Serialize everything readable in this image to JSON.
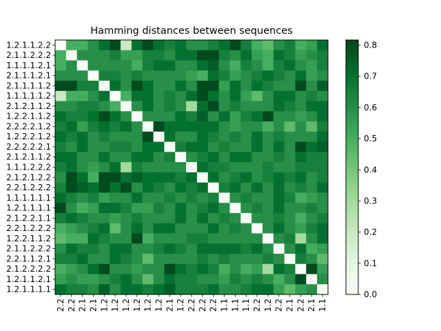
{
  "chart_data": {
    "type": "heatmap",
    "title": "Hamming distances between sequences",
    "row_labels": [
      "1.2.1.1.2.2",
      "2.1.1.2.2.2",
      "1.1.1.1.2.1",
      "2.1.1.1.2.1",
      "2.1.1.1.1.2",
      "1.1.1.1.1.2",
      "2.1.2.1.1.2",
      "1.2.2.1.1.2",
      "2.2.2.2.1.2",
      "1.2.2.2.1.2",
      "2.2.2.2.2.1",
      "2.1.2.1.1.2",
      "1.1.1.2.2.2",
      "2.1.2.1.2.2",
      "2.2.1.2.2.2",
      "1.1.1.1.1.1",
      "1.2.1.1.1.1",
      "2.1.2.2.1.1",
      "2.2.1.2.2.2",
      "1.2.2.1.1.2",
      "2.1.1.2.2.2",
      "2.2.1.1.2.1",
      "2.1.2.2.2.2",
      "1.2.1.1.2.1",
      "1.2.1.1.1.1"
    ],
    "col_labels": [
      "2.2",
      "2.2",
      "2.1",
      "2.1",
      "1.2",
      "1.2",
      "1.2",
      "1.2",
      "1.2",
      "1.2",
      "2.1",
      "1.2",
      "2.2",
      "2.2",
      "2.2",
      "1.1",
      "1.1",
      "1.1",
      "2.2",
      "1.2",
      "2.2",
      "2.1",
      "2.2",
      "2.1",
      "1.1"
    ],
    "colorbar": {
      "min": 0.0,
      "max": 0.8167,
      "ticks": [
        0.0,
        0.1,
        0.2,
        0.3,
        0.4,
        0.5,
        0.6,
        0.7,
        0.8
      ],
      "colormap": "Greens"
    },
    "matrix": [
      [
        0.0,
        0.5,
        0.5,
        0.6,
        0.7,
        0.8,
        0.2,
        0.7,
        0.8,
        0.7,
        0.65,
        0.7,
        0.6,
        0.6,
        0.65,
        0.7,
        0.8,
        0.65,
        0.5,
        0.45,
        0.6,
        0.65,
        0.5,
        0.55,
        0.7
      ],
      [
        0.5,
        0.0,
        0.6,
        0.6,
        0.6,
        0.65,
        0.55,
        0.55,
        0.65,
        0.65,
        0.6,
        0.7,
        0.7,
        0.8,
        0.8,
        0.65,
        0.6,
        0.7,
        0.55,
        0.5,
        0.7,
        0.65,
        0.55,
        0.6,
        0.65
      ],
      [
        0.5,
        0.6,
        0.0,
        0.6,
        0.6,
        0.6,
        0.6,
        0.5,
        0.65,
        0.7,
        0.7,
        0.6,
        0.6,
        0.7,
        0.75,
        0.6,
        0.5,
        0.65,
        0.6,
        0.5,
        0.65,
        0.7,
        0.6,
        0.55,
        0.65
      ],
      [
        0.6,
        0.6,
        0.6,
        0.0,
        0.65,
        0.65,
        0.6,
        0.65,
        0.6,
        0.6,
        0.6,
        0.6,
        0.55,
        0.5,
        0.7,
        0.65,
        0.55,
        0.6,
        0.65,
        0.7,
        0.65,
        0.6,
        0.7,
        0.55,
        0.6
      ],
      [
        0.8,
        0.8,
        0.65,
        0.65,
        0.0,
        0.7,
        0.6,
        0.8,
        0.7,
        0.6,
        0.6,
        0.7,
        0.6,
        0.8,
        0.8,
        0.55,
        0.7,
        0.6,
        0.7,
        0.65,
        0.6,
        0.6,
        0.8,
        0.6,
        0.75
      ],
      [
        0.2,
        0.5,
        0.5,
        0.6,
        0.7,
        0.0,
        0.5,
        0.7,
        0.7,
        0.6,
        0.65,
        0.6,
        0.7,
        0.8,
        0.7,
        0.6,
        0.7,
        0.55,
        0.45,
        0.6,
        0.7,
        0.7,
        0.6,
        0.65,
        0.6
      ],
      [
        0.6,
        0.6,
        0.65,
        0.65,
        0.6,
        0.5,
        0.0,
        0.6,
        0.7,
        0.6,
        0.65,
        0.6,
        0.3,
        0.7,
        0.8,
        0.6,
        0.65,
        0.6,
        0.6,
        0.6,
        0.7,
        0.65,
        0.6,
        0.7,
        0.7
      ],
      [
        0.7,
        0.65,
        0.65,
        0.7,
        0.8,
        0.7,
        0.6,
        0.0,
        0.6,
        0.6,
        0.6,
        0.7,
        0.65,
        0.75,
        0.6,
        0.7,
        0.55,
        0.65,
        0.7,
        0.8,
        0.6,
        0.6,
        0.55,
        0.6,
        0.7
      ],
      [
        0.65,
        0.7,
        0.55,
        0.65,
        0.7,
        0.65,
        0.7,
        0.6,
        0.0,
        0.8,
        0.7,
        0.7,
        0.7,
        0.7,
        0.7,
        0.6,
        0.55,
        0.6,
        0.6,
        0.5,
        0.6,
        0.45,
        0.6,
        0.45,
        0.65
      ],
      [
        0.7,
        0.65,
        0.7,
        0.6,
        0.65,
        0.6,
        0.6,
        0.6,
        0.8,
        0.0,
        0.7,
        0.6,
        0.6,
        0.7,
        0.65,
        0.6,
        0.65,
        0.6,
        0.7,
        0.6,
        0.65,
        0.6,
        0.6,
        0.6,
        0.7
      ],
      [
        0.65,
        0.6,
        0.7,
        0.6,
        0.6,
        0.65,
        0.65,
        0.6,
        0.7,
        0.7,
        0.0,
        0.65,
        0.7,
        0.7,
        0.6,
        0.65,
        0.6,
        0.6,
        0.7,
        0.6,
        0.7,
        0.6,
        0.8,
        0.7,
        0.75
      ],
      [
        0.7,
        0.7,
        0.6,
        0.6,
        0.7,
        0.6,
        0.6,
        0.7,
        0.7,
        0.6,
        0.65,
        0.0,
        0.6,
        0.65,
        0.7,
        0.6,
        0.7,
        0.7,
        0.6,
        0.6,
        0.65,
        0.6,
        0.7,
        0.65,
        0.65
      ],
      [
        0.65,
        0.7,
        0.6,
        0.55,
        0.6,
        0.7,
        0.3,
        0.65,
        0.6,
        0.6,
        0.6,
        0.6,
        0.0,
        0.7,
        0.65,
        0.65,
        0.6,
        0.6,
        0.6,
        0.65,
        0.6,
        0.6,
        0.65,
        0.65,
        0.65
      ],
      [
        0.6,
        0.8,
        0.7,
        0.5,
        0.8,
        0.8,
        0.7,
        0.75,
        0.7,
        0.7,
        0.7,
        0.65,
        0.7,
        0.0,
        0.7,
        0.6,
        0.65,
        0.7,
        0.6,
        0.65,
        0.7,
        0.65,
        0.7,
        0.6,
        0.65
      ],
      [
        0.65,
        0.8,
        0.75,
        0.7,
        0.8,
        0.7,
        0.8,
        0.6,
        0.7,
        0.65,
        0.6,
        0.7,
        0.65,
        0.7,
        0.0,
        0.65,
        0.7,
        0.6,
        0.7,
        0.6,
        0.7,
        0.6,
        0.65,
        0.6,
        0.7
      ],
      [
        0.7,
        0.65,
        0.6,
        0.65,
        0.55,
        0.6,
        0.6,
        0.7,
        0.6,
        0.6,
        0.65,
        0.6,
        0.65,
        0.6,
        0.65,
        0.0,
        0.6,
        0.65,
        0.6,
        0.6,
        0.7,
        0.65,
        0.5,
        0.55,
        0.6
      ],
      [
        0.8,
        0.6,
        0.5,
        0.55,
        0.7,
        0.7,
        0.65,
        0.55,
        0.55,
        0.65,
        0.6,
        0.7,
        0.6,
        0.65,
        0.7,
        0.6,
        0.0,
        0.6,
        0.65,
        0.6,
        0.7,
        0.6,
        0.6,
        0.65,
        0.6
      ],
      [
        0.65,
        0.7,
        0.65,
        0.6,
        0.6,
        0.55,
        0.6,
        0.65,
        0.6,
        0.6,
        0.6,
        0.7,
        0.6,
        0.7,
        0.6,
        0.65,
        0.6,
        0.0,
        0.6,
        0.6,
        0.65,
        0.6,
        0.5,
        0.6,
        0.65
      ],
      [
        0.5,
        0.55,
        0.6,
        0.65,
        0.7,
        0.45,
        0.6,
        0.7,
        0.6,
        0.7,
        0.7,
        0.6,
        0.6,
        0.6,
        0.7,
        0.6,
        0.65,
        0.6,
        0.0,
        0.6,
        0.7,
        0.6,
        0.55,
        0.65,
        0.7
      ],
      [
        0.45,
        0.5,
        0.5,
        0.7,
        0.65,
        0.6,
        0.6,
        0.8,
        0.5,
        0.6,
        0.6,
        0.6,
        0.65,
        0.65,
        0.6,
        0.6,
        0.6,
        0.6,
        0.6,
        0.0,
        0.6,
        0.65,
        0.3,
        0.6,
        0.7
      ],
      [
        0.6,
        0.7,
        0.65,
        0.65,
        0.6,
        0.7,
        0.7,
        0.6,
        0.6,
        0.65,
        0.7,
        0.65,
        0.6,
        0.7,
        0.7,
        0.7,
        0.7,
        0.65,
        0.7,
        0.6,
        0.0,
        0.6,
        0.7,
        0.5,
        0.55
      ],
      [
        0.65,
        0.65,
        0.7,
        0.6,
        0.6,
        0.7,
        0.65,
        0.6,
        0.45,
        0.6,
        0.6,
        0.6,
        0.6,
        0.65,
        0.6,
        0.65,
        0.6,
        0.6,
        0.6,
        0.65,
        0.6,
        0.0,
        0.65,
        0.6,
        0.45
      ],
      [
        0.5,
        0.55,
        0.6,
        0.7,
        0.8,
        0.6,
        0.6,
        0.55,
        0.6,
        0.6,
        0.8,
        0.7,
        0.65,
        0.7,
        0.65,
        0.5,
        0.6,
        0.5,
        0.55,
        0.3,
        0.7,
        0.65,
        0.0,
        0.8,
        0.55
      ],
      [
        0.55,
        0.6,
        0.55,
        0.55,
        0.6,
        0.65,
        0.7,
        0.6,
        0.45,
        0.6,
        0.7,
        0.65,
        0.65,
        0.6,
        0.6,
        0.55,
        0.65,
        0.6,
        0.65,
        0.6,
        0.5,
        0.6,
        0.8,
        0.0,
        0.6
      ],
      [
        0.7,
        0.65,
        0.65,
        0.6,
        0.75,
        0.6,
        0.7,
        0.7,
        0.65,
        0.7,
        0.75,
        0.65,
        0.65,
        0.65,
        0.7,
        0.6,
        0.6,
        0.65,
        0.7,
        0.7,
        0.55,
        0.45,
        0.55,
        0.6,
        0.0
      ]
    ]
  }
}
